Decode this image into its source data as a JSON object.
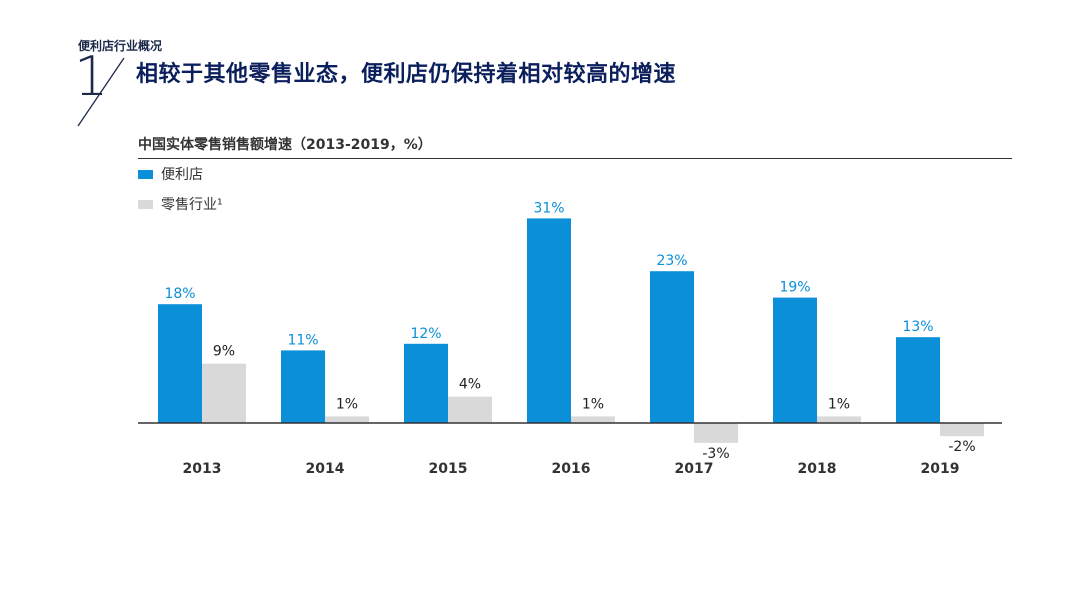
{
  "header": {
    "section_label": "便利店行业概况",
    "slide_number": "1",
    "title": "相较于其他零售业态，便利店仍保持着相对较高的增速"
  },
  "colors": {
    "convenience": "#0a8fd8",
    "retail": "#d9d9d9",
    "convenience_label": "#0a8fd8",
    "retail_label": "#222222",
    "axis": "#333333",
    "title_dark": "#0b1f5c"
  },
  "chart_data": {
    "type": "bar",
    "title": "中国实体零售销售额增速（2013-2019，%）",
    "categories": [
      "2013",
      "2014",
      "2015",
      "2016",
      "2017",
      "2018",
      "2019"
    ],
    "series": [
      {
        "name": "便利店",
        "values": [
          18,
          11,
          12,
          31,
          23,
          19,
          13
        ],
        "labels": [
          "18%",
          "11%",
          "12%",
          "31%",
          "23%",
          "19%",
          "13%"
        ]
      },
      {
        "name": "零售行业¹",
        "values": [
          9,
          1,
          4,
          1,
          -3,
          1,
          -2
        ],
        "labels": [
          "9%",
          "1%",
          "4%",
          "1%",
          "-3%",
          "1%",
          "-2%"
        ]
      }
    ],
    "ylim": [
      -3,
      31
    ],
    "xlabel": "",
    "ylabel": "",
    "legend": "top-left"
  }
}
